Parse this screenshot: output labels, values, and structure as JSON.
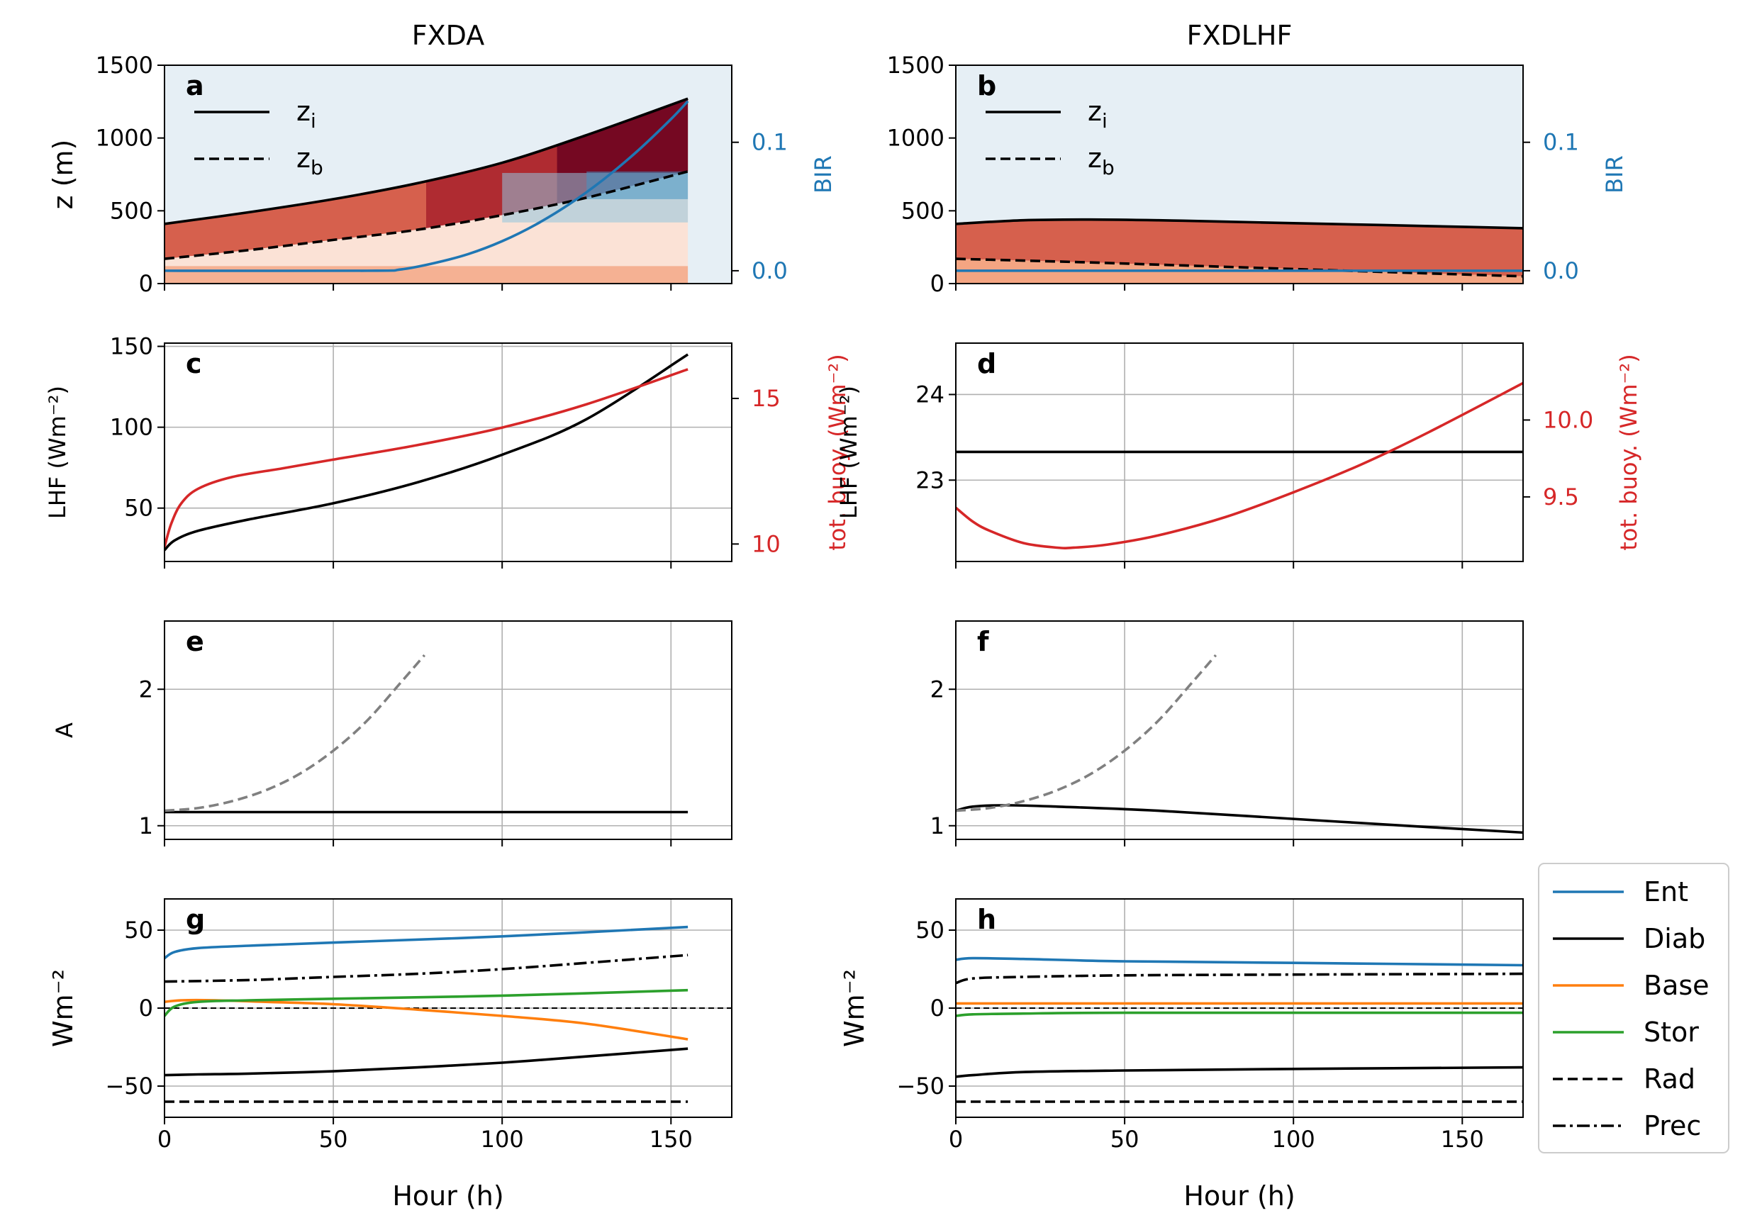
{
  "chart_data": {
    "type": "line",
    "column_titles": [
      "FXDA",
      "FXDLHF"
    ],
    "x_axis": {
      "label": "Hour (h)",
      "ticks": [
        0,
        50,
        100,
        150
      ]
    },
    "panels": [
      {
        "id": "a",
        "column": 0,
        "row": 0,
        "type": "area",
        "ylabel": "z (m)",
        "ylim": [
          0,
          1500
        ],
        "yticks": [
          0,
          500,
          1000,
          1500
        ],
        "xlim": [
          0,
          168
        ],
        "grid": false,
        "legend": [
          "z_i",
          "z_b"
        ],
        "right_axis": {
          "label": "BIR",
          "ylim": [
            -0.01,
            0.16
          ],
          "ticks": [
            0.0,
            0.1
          ],
          "tick_labels": [
            "0.0",
            "0.1"
          ],
          "color": "#1f77b4"
        },
        "series": [
          {
            "name": "z_i",
            "style": "solid",
            "color": "#000000",
            "x": [
              0,
              25,
              50,
              75,
              100,
              125,
              155
            ],
            "y": [
              410,
              490,
              580,
              690,
              830,
              1020,
              1270
            ]
          },
          {
            "name": "z_b",
            "style": "dashed",
            "color": "#000000",
            "x": [
              0,
              25,
              50,
              75,
              100,
              125,
              155
            ],
            "y": [
              170,
              230,
              300,
              370,
              470,
              590,
              770
            ]
          },
          {
            "axis": "right",
            "style": "solid",
            "color": "#1f77b4",
            "x": [
              0,
              60,
              70,
              80,
              90,
              100,
              110,
              120,
              130,
              140,
              150,
              155
            ],
            "y": [
              0.0,
              0.0,
              0.001,
              0.006,
              0.013,
              0.023,
              0.036,
              0.052,
              0.071,
              0.093,
              0.118,
              0.132
            ]
          }
        ]
      },
      {
        "id": "b",
        "column": 1,
        "row": 0,
        "type": "area",
        "ylim": [
          0,
          1500
        ],
        "yticks": [
          0,
          500,
          1000,
          1500
        ],
        "xlim": [
          0,
          168
        ],
        "grid": false,
        "legend": [
          "z_i",
          "z_b"
        ],
        "right_axis": {
          "label": "BIR",
          "ylim": [
            -0.01,
            0.16
          ],
          "ticks": [
            0.0,
            0.1
          ],
          "tick_labels": [
            "0.0",
            "0.1"
          ],
          "color": "#1f77b4"
        },
        "series": [
          {
            "name": "z_i",
            "style": "solid",
            "color": "#000000",
            "x": [
              0,
              20,
              40,
              60,
              80,
              100,
              120,
              140,
              168
            ],
            "y": [
              410,
              435,
              440,
              435,
              425,
              415,
              405,
              395,
              380
            ]
          },
          {
            "name": "z_b",
            "style": "dashed",
            "color": "#000000",
            "x": [
              0,
              20,
              40,
              60,
              80,
              100,
              120,
              140,
              168
            ],
            "y": [
              170,
              158,
              145,
              130,
              115,
              100,
              85,
              70,
              50
            ]
          },
          {
            "axis": "right",
            "style": "solid",
            "color": "#1f77b4",
            "x": [
              0,
              168
            ],
            "y": [
              0.0,
              0.0
            ]
          }
        ]
      },
      {
        "id": "c",
        "column": 0,
        "row": 1,
        "ylabel": "LHF (Wm⁻²)",
        "ylim": [
          17,
          152
        ],
        "yticks": [
          50,
          100,
          150
        ],
        "xlim": [
          0,
          168
        ],
        "grid": true,
        "right_axis": {
          "label": "tot. buoy.  (Wm⁻²)",
          "ylim": [
            9.4,
            16.9
          ],
          "ticks": [
            10,
            15
          ],
          "tick_labels": [
            "10",
            "15"
          ],
          "color": "#d62728"
        },
        "series": [
          {
            "style": "solid",
            "color": "#000000",
            "x": [
              0,
              3,
              10,
              25,
              50,
              75,
              100,
              125,
              155
            ],
            "y": [
              24,
              30,
              36,
              43,
              53,
              66,
              83,
              105,
              145
            ]
          },
          {
            "axis": "right",
            "style": "solid",
            "color": "#d62728",
            "x": [
              0,
              2,
              5,
              10,
              20,
              35,
              50,
              75,
              100,
              125,
              155
            ],
            "y": [
              9.9,
              10.7,
              11.4,
              11.9,
              12.3,
              12.6,
              12.9,
              13.4,
              14.0,
              14.8,
              16.0
            ]
          }
        ]
      },
      {
        "id": "d",
        "column": 1,
        "row": 1,
        "ylabel": "LHF (Wm⁻²)",
        "ylim": [
          22.05,
          24.6
        ],
        "yticks": [
          23,
          24
        ],
        "xlim": [
          0,
          168
        ],
        "grid": true,
        "right_axis": {
          "label": "tot. buoy.  (Wm⁻²)",
          "ylim": [
            9.08,
            10.5
          ],
          "ticks": [
            9.5,
            10.0
          ],
          "tick_labels": [
            "9.5",
            "10.0"
          ],
          "color": "#d62728"
        },
        "series": [
          {
            "style": "solid",
            "color": "#000000",
            "x": [
              0,
              168
            ],
            "y": [
              23.33,
              23.33
            ]
          },
          {
            "axis": "right",
            "style": "solid",
            "color": "#d62728",
            "x": [
              0,
              5,
              10,
              20,
              30,
              35,
              45,
              60,
              80,
              100,
              120,
              140,
              168
            ],
            "y": [
              9.43,
              9.34,
              9.28,
              9.2,
              9.17,
              9.17,
              9.19,
              9.25,
              9.37,
              9.53,
              9.71,
              9.92,
              10.24
            ]
          }
        ]
      },
      {
        "id": "e",
        "column": 0,
        "row": 2,
        "ylabel": "A",
        "ylim": [
          0.9,
          2.5
        ],
        "yticks": [
          1,
          2
        ],
        "xlim": [
          0,
          168
        ],
        "grid": true,
        "series": [
          {
            "style": "solid",
            "color": "#000000",
            "x": [
              0,
              155
            ],
            "y": [
              1.1,
              1.1
            ]
          },
          {
            "style": "dashed",
            "color": "#808080",
            "x": [
              0,
              10,
              20,
              30,
              40,
              50,
              60,
              70,
              77
            ],
            "y": [
              1.11,
              1.13,
              1.18,
              1.26,
              1.38,
              1.55,
              1.77,
              2.05,
              2.25
            ]
          }
        ]
      },
      {
        "id": "f",
        "column": 1,
        "row": 2,
        "ylim": [
          0.9,
          2.5
        ],
        "yticks": [
          1,
          2
        ],
        "xlim": [
          0,
          168
        ],
        "grid": true,
        "series": [
          {
            "style": "solid",
            "color": "#000000",
            "x": [
              0,
              5,
              15,
              30,
              60,
              100,
              140,
              168
            ],
            "y": [
              1.11,
              1.14,
              1.15,
              1.14,
              1.11,
              1.05,
              0.99,
              0.95
            ]
          },
          {
            "style": "dashed",
            "color": "#808080",
            "x": [
              0,
              10,
              20,
              30,
              40,
              50,
              60,
              70,
              77
            ],
            "y": [
              1.11,
              1.13,
              1.18,
              1.26,
              1.38,
              1.55,
              1.77,
              2.05,
              2.25
            ]
          }
        ]
      },
      {
        "id": "g",
        "column": 0,
        "row": 3,
        "ylabel": "Wm⁻²",
        "ylim": [
          -70,
          70
        ],
        "yticks": [
          -50,
          0,
          50
        ],
        "ytick_labels": [
          "−50",
          "0",
          "50"
        ],
        "xlim": [
          0,
          168
        ],
        "grid": true,
        "zero_line": true,
        "series": [
          {
            "name": "Ent",
            "style": "solid",
            "color": "#1f77b4",
            "x": [
              0,
              3,
              10,
              25,
              50,
              100,
              155
            ],
            "y": [
              32,
              36,
              38.5,
              40,
              42,
              46,
              52
            ]
          },
          {
            "name": "Diab",
            "style": "solid",
            "color": "#000000",
            "x": [
              0,
              10,
              25,
              50,
              75,
              100,
              125,
              155
            ],
            "y": [
              -43,
              -42.5,
              -42,
              -40.5,
              -38,
              -35,
              -31,
              -26
            ]
          },
          {
            "name": "Base",
            "style": "solid",
            "color": "#ff7f0e",
            "x": [
              0,
              5,
              15,
              30,
              50,
              75,
              100,
              125,
              155
            ],
            "y": [
              4,
              5,
              5,
              4,
              2.5,
              -1,
              -5,
              -10,
              -20
            ]
          },
          {
            "name": "Stor",
            "style": "solid",
            "color": "#2ca02c",
            "x": [
              0,
              3,
              10,
              25,
              50,
              100,
              155
            ],
            "y": [
              -5,
              1,
              4,
              5,
              6,
              8,
              11.5
            ]
          },
          {
            "name": "Rad",
            "style": "dashed",
            "color": "#000000",
            "x": [
              0,
              155
            ],
            "y": [
              -60,
              -60
            ]
          },
          {
            "name": "Prec",
            "style": "dashdot",
            "color": "#000000",
            "x": [
              0,
              25,
              50,
              75,
              100,
              125,
              155
            ],
            "y": [
              17,
              18,
              20,
              22,
              25,
              29,
              34
            ]
          }
        ]
      },
      {
        "id": "h",
        "column": 1,
        "row": 3,
        "ylabel": "Wm⁻²",
        "ylim": [
          -70,
          70
        ],
        "yticks": [
          -50,
          0,
          50
        ],
        "ytick_labels": [
          "−50",
          "0",
          "50"
        ],
        "xlim": [
          0,
          168
        ],
        "grid": true,
        "zero_line": true,
        "series": [
          {
            "name": "Ent",
            "style": "solid",
            "color": "#1f77b4",
            "x": [
              0,
              5,
              20,
              50,
              100,
              168
            ],
            "y": [
              31,
              32,
              31.5,
              30,
              29,
              27.5
            ]
          },
          {
            "name": "Diab",
            "style": "solid",
            "color": "#000000",
            "x": [
              0,
              5,
              20,
              50,
              100,
              168
            ],
            "y": [
              -44,
              -43,
              -41,
              -40,
              -39,
              -38
            ]
          },
          {
            "name": "Base",
            "style": "solid",
            "color": "#ff7f0e",
            "x": [
              0,
              168
            ],
            "y": [
              3,
              3
            ]
          },
          {
            "name": "Stor",
            "style": "solid",
            "color": "#2ca02c",
            "x": [
              0,
              5,
              20,
              50,
              168
            ],
            "y": [
              -5,
              -4,
              -3.5,
              -3,
              -3
            ]
          },
          {
            "name": "Rad",
            "style": "dashed",
            "color": "#000000",
            "x": [
              0,
              168
            ],
            "y": [
              -60,
              -60
            ]
          },
          {
            "name": "Prec",
            "style": "dashdot",
            "color": "#000000",
            "x": [
              0,
              5,
              20,
              50,
              100,
              168
            ],
            "y": [
              16,
              19,
              20,
              21,
              21.5,
              22
            ]
          }
        ]
      }
    ],
    "legend": {
      "placement": "right of bottom row",
      "entries": [
        {
          "name": "Ent",
          "color": "#1f77b4",
          "style": "solid"
        },
        {
          "name": "Diab",
          "color": "#000000",
          "style": "solid"
        },
        {
          "name": "Base",
          "color": "#ff7f0e",
          "style": "solid"
        },
        {
          "name": "Stor",
          "color": "#2ca02c",
          "style": "solid"
        },
        {
          "name": "Rad",
          "color": "#000000",
          "style": "dashed"
        },
        {
          "name": "Prec",
          "color": "#000000",
          "style": "dashdot"
        }
      ]
    }
  }
}
